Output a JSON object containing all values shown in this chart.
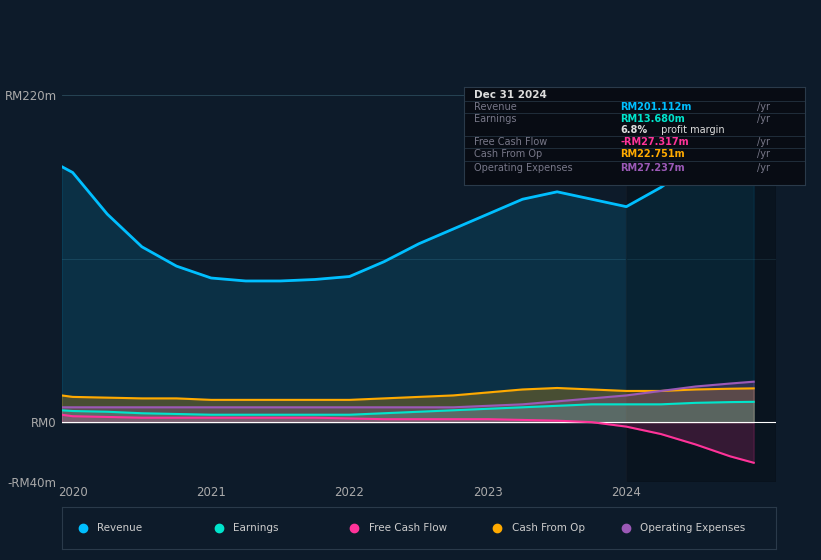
{
  "bg_color": "#0d1b2a",
  "plot_bg_color": "#0d1b2a",
  "title_box": {
    "date": "Dec 31 2024",
    "revenue_val": "RM201.112m",
    "earnings_val": "RM13.680m",
    "margin": "6.8%",
    "fcf_val": "-RM27.317m",
    "cashop_val": "RM22.751m",
    "opex_val": "RM27.237m"
  },
  "x_years": [
    2019.92,
    2020.0,
    2020.25,
    2020.5,
    2020.75,
    2021.0,
    2021.25,
    2021.5,
    2021.75,
    2022.0,
    2022.25,
    2022.5,
    2022.75,
    2023.0,
    2023.25,
    2023.5,
    2023.75,
    2024.0,
    2024.25,
    2024.5,
    2024.75,
    2024.92
  ],
  "revenue": [
    172,
    168,
    140,
    118,
    105,
    97,
    95,
    95,
    96,
    98,
    108,
    120,
    130,
    140,
    150,
    155,
    150,
    145,
    158,
    175,
    195,
    201
  ],
  "earnings": [
    8,
    7.5,
    7,
    6,
    5.5,
    5,
    5,
    5,
    5,
    5,
    6,
    7,
    8,
    9,
    10,
    11,
    12,
    12,
    12,
    13,
    13.5,
    13.68
  ],
  "free_cash_flow": [
    5,
    4,
    3.5,
    3,
    3,
    3,
    3,
    3,
    3,
    2.5,
    2,
    2,
    2,
    2,
    1.5,
    1,
    0,
    -3,
    -8,
    -15,
    -23,
    -27.317
  ],
  "cash_from_op": [
    18,
    17,
    16.5,
    16,
    16,
    15,
    15,
    15,
    15,
    15,
    16,
    17,
    18,
    20,
    22,
    23,
    22,
    21,
    21,
    22,
    22.5,
    22.751
  ],
  "operating_expenses": [
    10,
    10,
    10,
    10,
    10,
    10,
    10,
    10,
    10,
    10,
    10,
    10,
    10,
    11,
    12,
    14,
    16,
    18,
    21,
    24,
    26,
    27.237
  ],
  "ylim": [
    -40,
    220
  ],
  "yticks": [
    220,
    0,
    -40
  ],
  "ytick_labels": [
    "RM220m",
    "RM0",
    "-RM40m"
  ],
  "xtick_positions": [
    2020,
    2021,
    2022,
    2023,
    2024
  ],
  "xtick_labels": [
    "2020",
    "2021",
    "2022",
    "2023",
    "2024"
  ],
  "xmin": 2019.92,
  "xmax": 2025.08,
  "vline_x": 2024.0,
  "colors": {
    "revenue": "#00bfff",
    "earnings": "#00e5cc",
    "free_cash_flow": "#ff3399",
    "cash_from_op": "#ffaa00",
    "operating_expenses": "#9b59b6"
  },
  "legend_items": [
    "Revenue",
    "Earnings",
    "Free Cash Flow",
    "Cash From Op",
    "Operating Expenses"
  ]
}
